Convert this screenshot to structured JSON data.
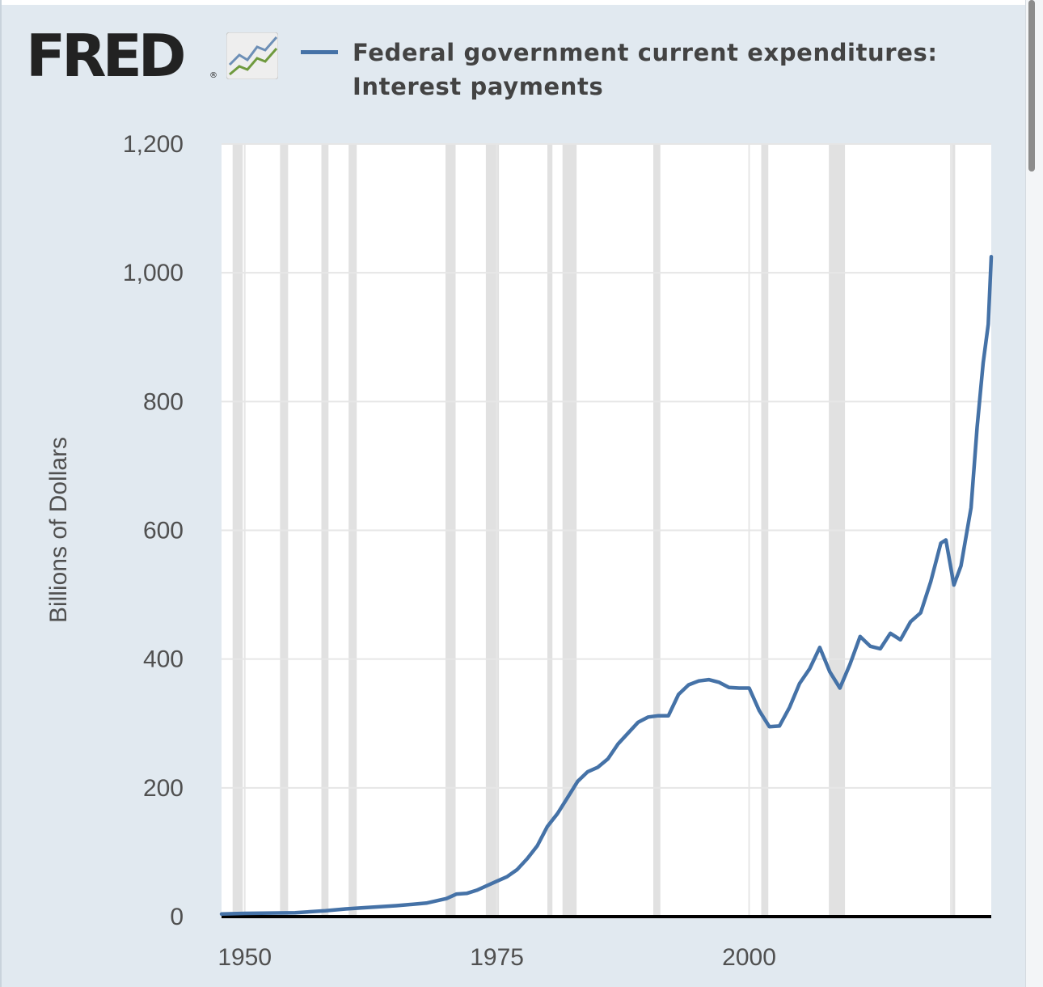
{
  "brand": {
    "name": "FRED",
    "registered": "®"
  },
  "colors": {
    "series": "#4572a7",
    "recession": "#e1e1e1",
    "grid": "#e6e6e6",
    "background": "#e1e9f0",
    "plot": "#ffffff",
    "text": "#434343",
    "axis": "#000000"
  },
  "icons": {
    "logo_chart": "line-chart-icon"
  },
  "chart_data": {
    "type": "line",
    "title": "Federal government current expenditures: Interest payments",
    "legend": [
      "Federal government current expenditures: Interest payments"
    ],
    "legend_position": "top",
    "xlabel": "",
    "ylabel": "Billions of Dollars",
    "xlim": [
      1947.7,
      2024.0
    ],
    "ylim": [
      0,
      1200
    ],
    "grid": true,
    "yticks": [
      {
        "value": 0,
        "label": "0"
      },
      {
        "value": 200,
        "label": "200"
      },
      {
        "value": 400,
        "label": "400"
      },
      {
        "value": 600,
        "label": "600"
      },
      {
        "value": 800,
        "label": "800"
      },
      {
        "value": 1000,
        "label": "1,000"
      },
      {
        "value": 1200,
        "label": "1,200"
      }
    ],
    "xticks": [
      {
        "value": 1950,
        "label": "1950"
      },
      {
        "value": 1975,
        "label": "1975"
      },
      {
        "value": 2000,
        "label": "2000"
      }
    ],
    "xgrid_years": [
      1950,
      1975,
      2000,
      2020
    ],
    "recessions": [
      [
        1948.8,
        1949.8
      ],
      [
        1953.5,
        1954.3
      ],
      [
        1957.6,
        1958.3
      ],
      [
        1960.3,
        1961.1
      ],
      [
        1969.9,
        1970.9
      ],
      [
        1973.9,
        1975.2
      ],
      [
        1980.0,
        1980.5
      ],
      [
        1981.5,
        1982.9
      ],
      [
        1990.5,
        1991.2
      ],
      [
        2001.2,
        2001.9
      ],
      [
        2007.9,
        2009.5
      ],
      [
        2020.1,
        2020.4
      ]
    ],
    "series": [
      {
        "name": "Federal government current expenditures: Interest payments",
        "color": "#4572a7",
        "x": [
          1947.7,
          1950,
          1955,
          1958,
          1960,
          1962,
          1965,
          1968,
          1970,
          1971,
          1972,
          1973,
          1974,
          1975,
          1976,
          1977,
          1978,
          1979,
          1980,
          1981,
          1982,
          1983,
          1984,
          1985,
          1986,
          1987,
          1988,
          1989,
          1990,
          1991,
          1992,
          1993,
          1994,
          1995,
          1996,
          1997,
          1998,
          1999,
          2000,
          2001,
          2002,
          2003,
          2004,
          2005,
          2006,
          2007,
          2008,
          2009,
          2010,
          2011,
          2012,
          2013,
          2014,
          2015,
          2016,
          2017,
          2018,
          2019,
          2019.5,
          2020.3,
          2021,
          2022,
          2022.6,
          2023.2,
          2023.7,
          2024.0
        ],
        "values": [
          4,
          5,
          6,
          9,
          12,
          14,
          17,
          21,
          28,
          35,
          36,
          41,
          48,
          55,
          62,
          73,
          90,
          110,
          140,
          160,
          185,
          210,
          225,
          232,
          245,
          268,
          285,
          302,
          310,
          312,
          312,
          345,
          360,
          366,
          368,
          364,
          356,
          355,
          355,
          320,
          295,
          296,
          325,
          362,
          385,
          418,
          380,
          355,
          392,
          435,
          420,
          416,
          440,
          430,
          458,
          472,
          520,
          580,
          585,
          515,
          545,
          635,
          760,
          860,
          920,
          1025
        ]
      }
    ]
  }
}
